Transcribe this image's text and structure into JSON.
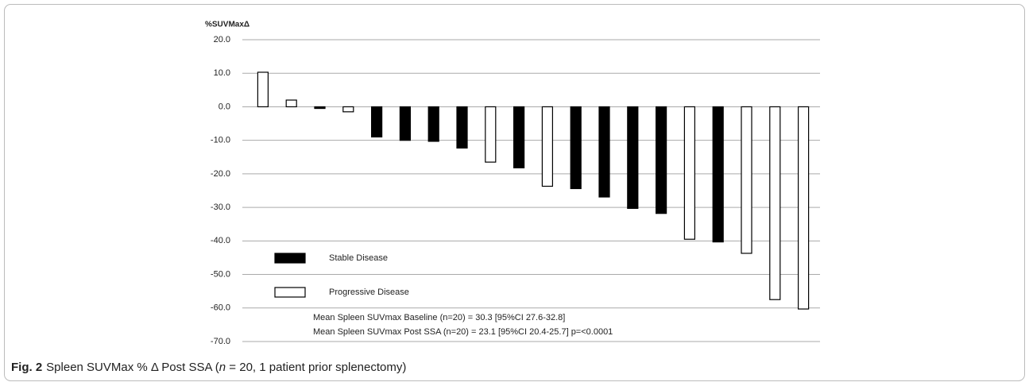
{
  "chart_data": {
    "type": "bar",
    "y_axis_title": "%SUVMaxΔ",
    "categories": [
      null,
      null,
      null,
      null,
      null,
      null,
      null,
      null,
      null,
      null,
      null,
      null,
      null,
      null,
      null,
      null,
      null,
      null,
      null,
      null
    ],
    "series": [
      {
        "name": "Stable Disease",
        "color": "#000000",
        "values": [
          null,
          null,
          -0.5,
          null,
          -9.0,
          -10.0,
          -10.3,
          -12.3,
          null,
          -18.2,
          null,
          -24.4,
          -26.9,
          -30.3,
          -31.8,
          null,
          -40.3,
          null,
          null,
          null
        ]
      },
      {
        "name": "Progressive Disease",
        "color": "#ffffff",
        "values": [
          10.3,
          2.0,
          null,
          -1.5,
          null,
          null,
          null,
          null,
          -16.5,
          null,
          -23.7,
          null,
          null,
          null,
          null,
          -39.5,
          null,
          -43.7,
          -57.5,
          -60.3
        ]
      }
    ],
    "ylim": [
      -70,
      20
    ],
    "yticks": [
      {
        "value": -70,
        "label": "-70.0"
      },
      {
        "value": -60,
        "label": "-60.0"
      },
      {
        "value": -50,
        "label": "-50.0"
      },
      {
        "value": -40,
        "label": "-40.0"
      },
      {
        "value": -30,
        "label": "-30.0"
      },
      {
        "value": -20,
        "label": "-20.0"
      },
      {
        "value": -10,
        "label": "-10.0"
      },
      {
        "value": 0,
        "label": "0.0"
      },
      {
        "value": 10,
        "label": "10.0"
      },
      {
        "value": 20,
        "label": "20.0"
      }
    ],
    "grid": true,
    "legend": "lower-left",
    "annotations": [
      "Mean Spleen  SUVmax Baseline (n=20)  = 30.3 [95%CI 27.6-32.8]",
      "Mean Spleen  SUVmax Post SSA (n=20)  = 23.1 [95%CI 20.4-25.7]   p=<0.0001"
    ],
    "caption": {
      "label": "Fig. 2",
      "before": "Spleen SUVMax % Δ Post SSA (",
      "italic": "n",
      "after": " = 20, 1 patient prior splenectomy)"
    }
  }
}
